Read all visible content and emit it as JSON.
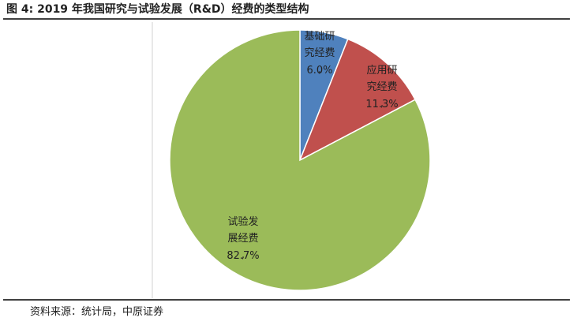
{
  "chart_data": {
    "type": "pie",
    "title": "图 4:  2019 年我国研究与试验发展（R&D）经费的类型结构",
    "source": "资料来源：统计局，中原证券",
    "categories": [
      "基础研究经费,",
      "应用研究经费,",
      "试验发展经费,"
    ],
    "values": [
      6.0,
      11.3,
      82.7
    ],
    "value_labels": [
      "6.0%",
      "11.3%",
      "82.7%"
    ],
    "colors": [
      "#4f81bd",
      "#c0504d",
      "#9bbb59"
    ]
  }
}
